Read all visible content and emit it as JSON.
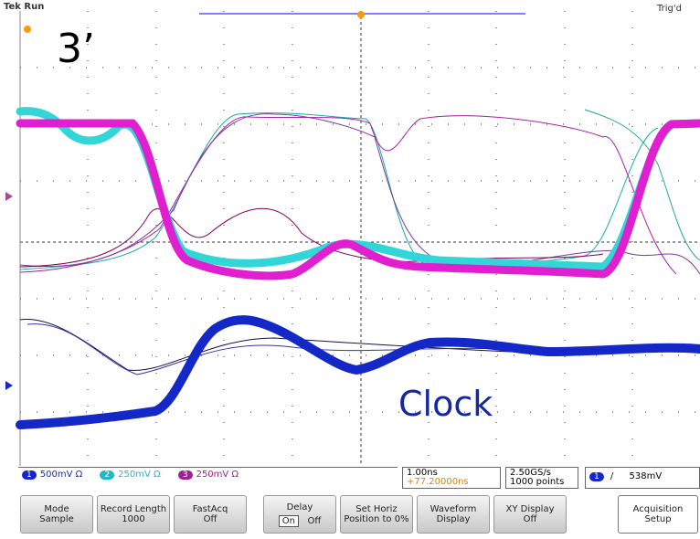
{
  "header": {
    "status": "Tek Run",
    "trigger": "Trig'd"
  },
  "annotations": {
    "label_top": "3’",
    "label_clock": "Clock"
  },
  "channels": [
    {
      "number": "1",
      "scale": "500mV Ω"
    },
    {
      "number": "2",
      "scale": "250mV Ω"
    },
    {
      "number": "3",
      "scale": "250mV Ω"
    }
  ],
  "timebase": {
    "scale": "1.00ns",
    "position": "+77.20000ns"
  },
  "sampling": {
    "rate": "2.50GS/s",
    "points": "1000 points"
  },
  "trigger_readout": {
    "channel": "1",
    "slope": "/",
    "level": "538mV"
  },
  "menu": [
    {
      "label": "Mode",
      "value": "Sample"
    },
    {
      "label": "Record Length",
      "value": "1000"
    },
    {
      "label": "FastAcq",
      "value": "Off"
    },
    {
      "label": "Delay",
      "options": [
        "On",
        "Off"
      ]
    },
    {
      "label": "Set Horiz Position to 0%"
    },
    {
      "label": "Waveform Display"
    },
    {
      "label": "XY Display",
      "value": "Off"
    },
    {
      "label": "Acquisition Setup"
    }
  ]
}
